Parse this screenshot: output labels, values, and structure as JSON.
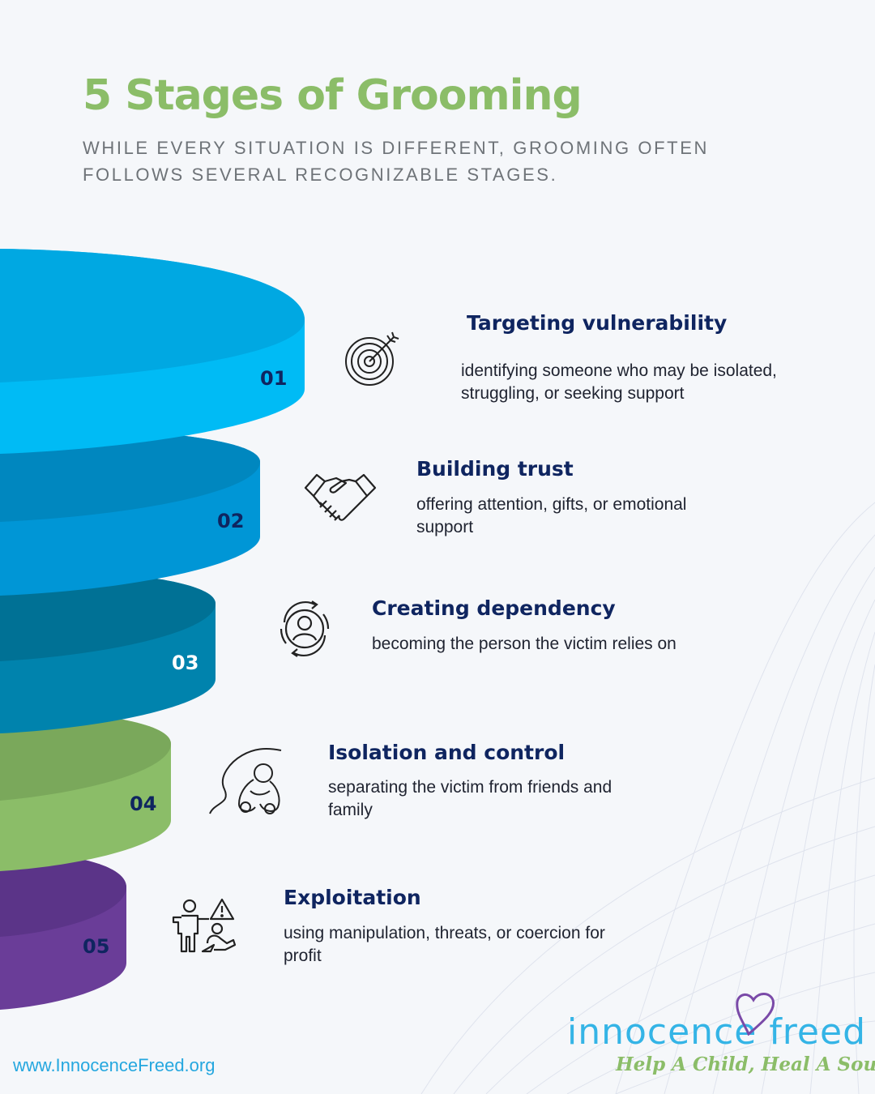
{
  "header": {
    "title": "5 Stages of Grooming",
    "subtitle": "WHILE EVERY SITUATION IS DIFFERENT, GROOMING OFTEN FOLLOWS SEVERAL RECOGNIZABLE STAGES."
  },
  "stages": [
    {
      "number": "01",
      "title": "Targeting vulnerability",
      "description": "identifying someone who may be isolated, struggling, or seeking support",
      "icon": "target-icon"
    },
    {
      "number": "02",
      "title": "Building trust",
      "description": "offering attention, gifts, or emotional support",
      "icon": "handshake-icon"
    },
    {
      "number": "03",
      "title": "Creating dependency",
      "description": "becoming the person the victim relies on",
      "icon": "person-cycle-icon"
    },
    {
      "number": "04",
      "title": "Isolation and control",
      "description": "separating the victim from friends and family",
      "icon": "isolated-person-icon"
    },
    {
      "number": "05",
      "title": "Exploitation",
      "description": "using manipulation, threats, or coercion for profit",
      "icon": "exploitation-warning-icon"
    }
  ],
  "colors": {
    "title": "#8bbd68",
    "stage_01": "#00bbf5",
    "stage_02": "#0096d6",
    "stage_03": "#0083ad",
    "stage_04": "#8bbd68",
    "stage_05": "#6a3d98"
  },
  "footer": {
    "website": "www.InnocenceFreed.org",
    "logo_word": "innocence freed",
    "logo_tagline": "Help A Child, Heal A Soul"
  }
}
